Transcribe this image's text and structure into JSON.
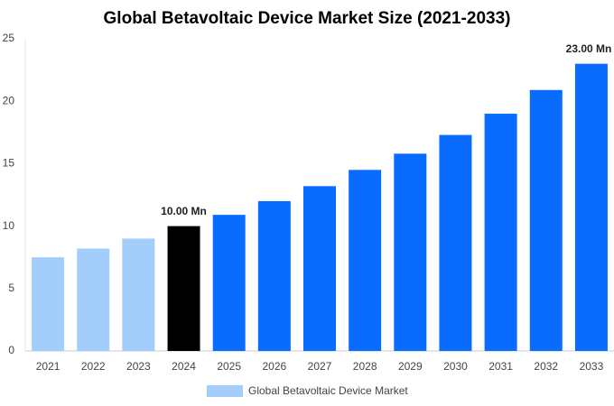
{
  "chart_data": {
    "type": "bar",
    "title": "Global Betavoltaic Device Market Size (2021-2033)",
    "categories": [
      "2021",
      "2022",
      "2023",
      "2024",
      "2025",
      "2026",
      "2027",
      "2028",
      "2029",
      "2030",
      "2031",
      "2032",
      "2033"
    ],
    "series": [
      {
        "name": "Global Betavoltaic Device Market",
        "color": "#a3cdfb",
        "colors": [
          "#a3cdfb",
          "#a3cdfb",
          "#a3cdfb",
          "#000000",
          "#0a6cff",
          "#0a6cff",
          "#0a6cff",
          "#0a6cff",
          "#0a6cff",
          "#0a6cff",
          "#0a6cff",
          "#0a6cff",
          "#0a6cff"
        ],
        "values": [
          7.5,
          8.2,
          9.0,
          10.0,
          10.9,
          12.0,
          13.2,
          14.5,
          15.8,
          17.3,
          19.0,
          20.9,
          23.0
        ],
        "value_labels": [
          null,
          null,
          null,
          "10.00 Mn",
          null,
          null,
          null,
          null,
          null,
          null,
          null,
          null,
          "23.00 Mn"
        ]
      }
    ],
    "ylim": [
      0,
      25
    ],
    "yticks": [
      0,
      5,
      10,
      15,
      20,
      25
    ],
    "grid": false
  }
}
